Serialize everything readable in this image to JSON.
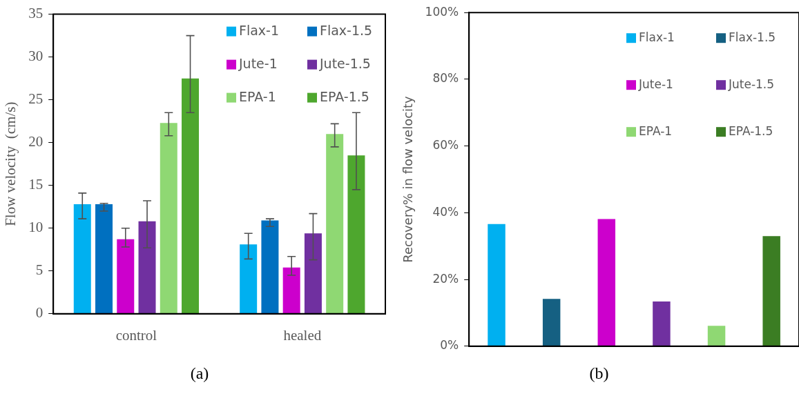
{
  "chart_data": [
    {
      "type": "bar",
      "categories": [
        "control",
        "healed"
      ],
      "ylabel": "Flow velocity  (cm/s)",
      "ylim": [
        0,
        35
      ],
      "yticks": [
        0,
        5,
        10,
        15,
        20,
        25,
        30,
        35
      ],
      "grid": false,
      "legend": "top right",
      "annotations": [
        "(a)"
      ],
      "series": [
        {
          "name": "Flax-1",
          "color": "#00b0f0",
          "values": [
            12.8,
            8.1
          ],
          "errors": [
            [
              11.1,
              14.1
            ],
            [
              6.4,
              9.4
            ]
          ]
        },
        {
          "name": "Flax-1.5",
          "color": "#0070c0",
          "values": [
            12.8,
            10.9
          ],
          "errors": [
            [
              12.0,
              12.9
            ],
            [
              10.2,
              11.1
            ]
          ]
        },
        {
          "name": "Jute-1",
          "color": "#cc00cc",
          "values": [
            8.7,
            5.4
          ],
          "errors": [
            [
              7.8,
              10.0
            ],
            [
              4.5,
              6.7
            ]
          ]
        },
        {
          "name": "Jute-1.5",
          "color": "#7030a0",
          "values": [
            10.8,
            9.4
          ],
          "errors": [
            [
              7.7,
              13.2
            ],
            [
              6.3,
              11.7
            ]
          ]
        },
        {
          "name": "EPA-1",
          "color": "#8fd873",
          "values": [
            22.3,
            21.0
          ],
          "errors": [
            [
              20.8,
              23.5
            ],
            [
              19.5,
              22.2
            ]
          ]
        },
        {
          "name": "EPA-1.5",
          "color": "#4ea72e",
          "values": [
            27.5,
            18.5
          ],
          "errors": [
            [
              23.5,
              32.5
            ],
            [
              14.5,
              23.5
            ]
          ]
        }
      ]
    },
    {
      "type": "bar",
      "categories": [
        null,
        null,
        null,
        null,
        null,
        null
      ],
      "ylabel": "Recovery% in flow velocity",
      "ylim": [
        0,
        100
      ],
      "yticks": [
        {
          "value": 0,
          "label": "0%"
        },
        {
          "value": 20,
          "label": "20%"
        },
        {
          "value": 40,
          "label": "40%"
        },
        {
          "value": 60,
          "label": "60%"
        },
        {
          "value": 80,
          "label": "80%"
        },
        {
          "value": 100,
          "label": "100%"
        }
      ],
      "tick_labels": "y",
      "grid": false,
      "legend": "top right",
      "annotations": [
        "(b)"
      ],
      "series": [
        {
          "name": "Flax-1",
          "color": "#00b0f0",
          "values": [
            36.6,
            null,
            null,
            null,
            null,
            null
          ]
        },
        {
          "name": "Flax-1.5",
          "color": "#156082",
          "values": [
            null,
            14.2,
            null,
            null,
            null,
            null
          ]
        },
        {
          "name": "Jute-1",
          "color": "#cc00cc",
          "values": [
            null,
            null,
            38.1,
            null,
            null,
            null
          ]
        },
        {
          "name": "Jute-1.5",
          "color": "#7030a0",
          "values": [
            null,
            null,
            null,
            13.4,
            null,
            null
          ]
        },
        {
          "name": "EPA-1",
          "color": "#8fd873",
          "values": [
            null,
            null,
            null,
            null,
            6.1,
            null
          ]
        },
        {
          "name": "EPA-1.5",
          "color": "#3b7d23",
          "values": [
            null,
            null,
            null,
            null,
            null,
            33.0
          ]
        }
      ]
    }
  ]
}
